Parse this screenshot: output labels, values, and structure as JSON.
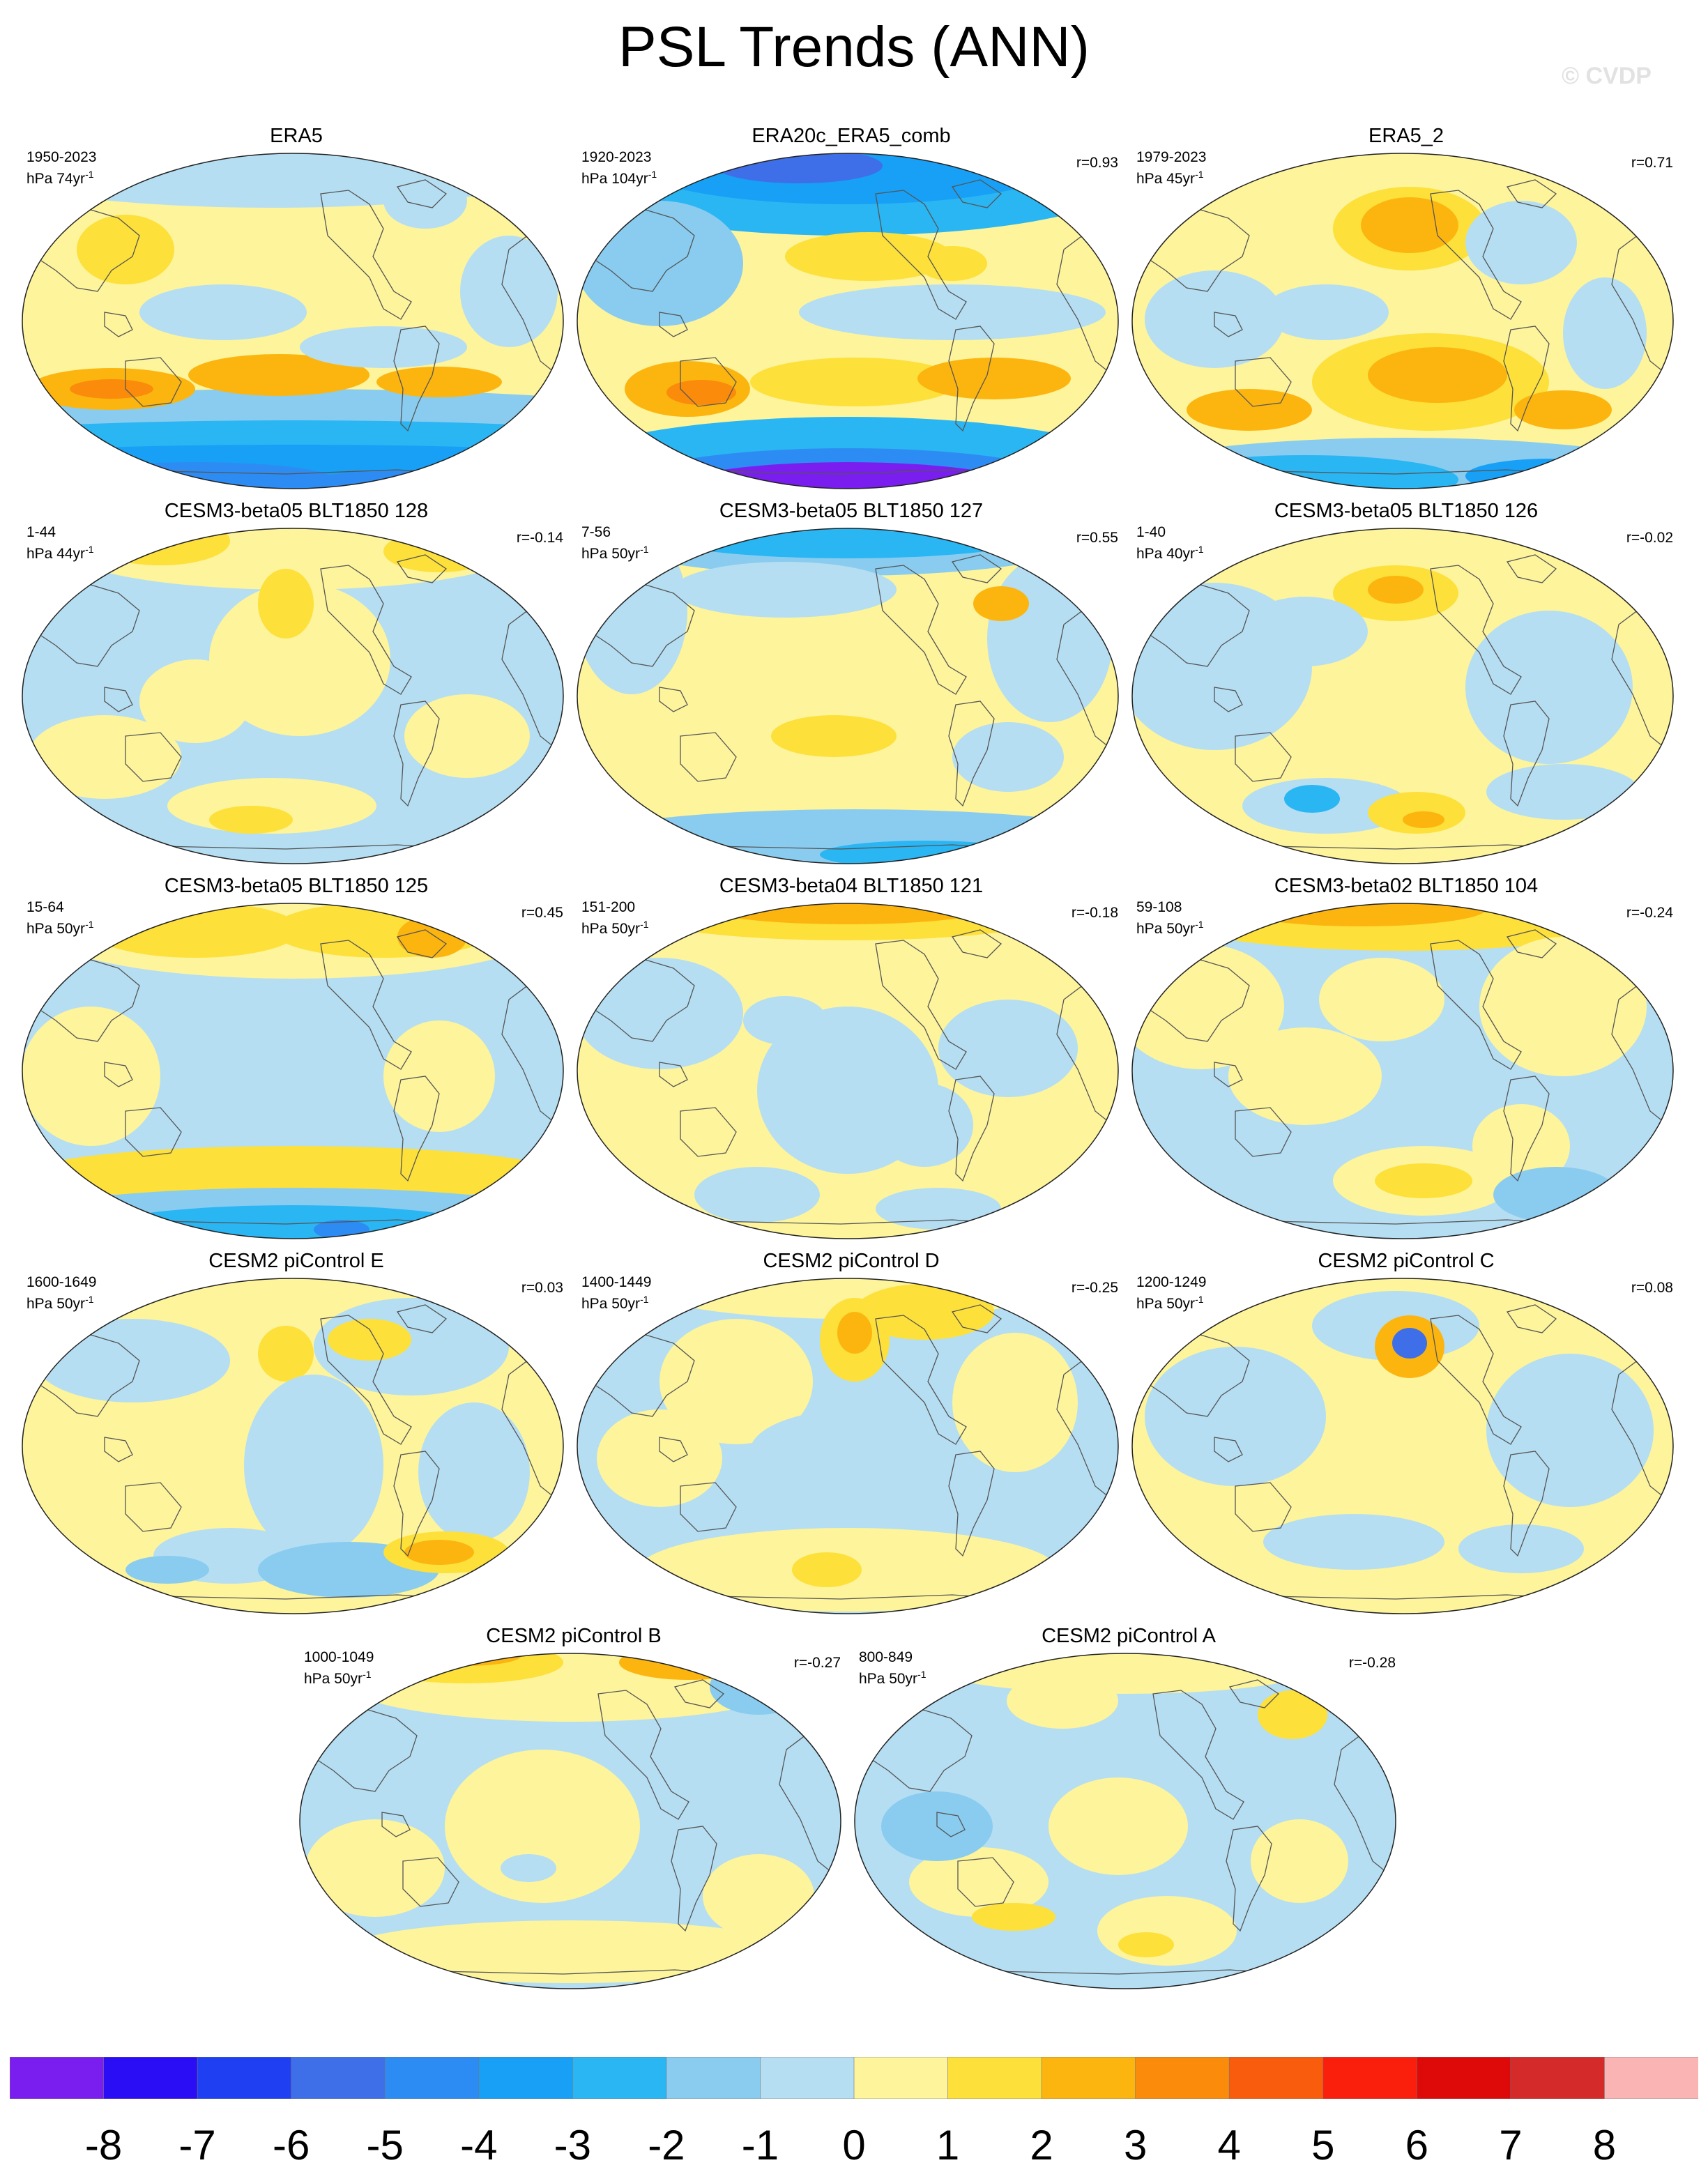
{
  "page": {
    "title": "PSL Trends (ANN)",
    "watermark": "© CVDP"
  },
  "chart_data": {
    "type": "heatmap",
    "title": "PSL Trends (ANN)",
    "projection": "global map panels (Robinson-like), Pacific-centered",
    "colorbar": {
      "ticks": [
        "-8",
        "-7",
        "-6",
        "-5",
        "-4",
        "-3",
        "-2",
        "-1",
        "0",
        "1",
        "2",
        "3",
        "4",
        "5",
        "6",
        "7",
        "8"
      ],
      "colors": [
        "#7a1ef0",
        "#2a0df5",
        "#1f3ff2",
        "#3e6fe8",
        "#2d8cf4",
        "#17a0f6",
        "#2ab5f3",
        "#89ccef",
        "#b5def2",
        "#fdf49c",
        "#fde03a",
        "#fcb50f",
        "#fb8b0a",
        "#f85c0c",
        "#fa1e0c",
        "#de0a0a",
        "#d42a2a",
        "#fbb4b4"
      ],
      "range": [
        -8,
        8
      ],
      "units": "hPa"
    },
    "panels": [
      {
        "title": "ERA5",
        "years": "1950-2023",
        "units": "hPa 74yr",
        "r": ""
      },
      {
        "title": "ERA20c_ERA5_comb",
        "years": "1920-2023",
        "units": "hPa 104yr",
        "r": "r=0.93"
      },
      {
        "title": "ERA5_2",
        "years": "1979-2023",
        "units": "hPa 45yr",
        "r": "r=0.71"
      },
      {
        "title": "CESM3-beta05 BLT1850 128",
        "years": "1-44",
        "units": "hPa 44yr",
        "r": "r=-0.14"
      },
      {
        "title": "CESM3-beta05 BLT1850 127",
        "years": "7-56",
        "units": "hPa 50yr",
        "r": "r=0.55"
      },
      {
        "title": "CESM3-beta05 BLT1850 126",
        "years": "1-40",
        "units": "hPa 40yr",
        "r": "r=-0.02"
      },
      {
        "title": "CESM3-beta05 BLT1850 125",
        "years": "15-64",
        "units": "hPa 50yr",
        "r": "r=0.45"
      },
      {
        "title": "CESM3-beta04 BLT1850 121",
        "years": "151-200",
        "units": "hPa 50yr",
        "r": "r=-0.18"
      },
      {
        "title": "CESM3-beta02 BLT1850 104",
        "years": "59-108",
        "units": "hPa 50yr",
        "r": "r=-0.24"
      },
      {
        "title": "CESM2 piControl E",
        "years": "1600-1649",
        "units": "hPa 50yr",
        "r": "r=0.03"
      },
      {
        "title": "CESM2 piControl D",
        "years": "1400-1449",
        "units": "hPa 50yr",
        "r": "r=-0.25"
      },
      {
        "title": "CESM2 piControl C",
        "years": "1200-1249",
        "units": "hPa 50yr",
        "r": "r=0.08"
      },
      {
        "title": "CESM2 piControl B",
        "years": "1000-1049",
        "units": "hPa 50yr",
        "r": "r=-0.27"
      },
      {
        "title": "CESM2 piControl A",
        "years": "800-849",
        "units": "hPa 50yr",
        "r": "r=-0.28"
      }
    ]
  }
}
